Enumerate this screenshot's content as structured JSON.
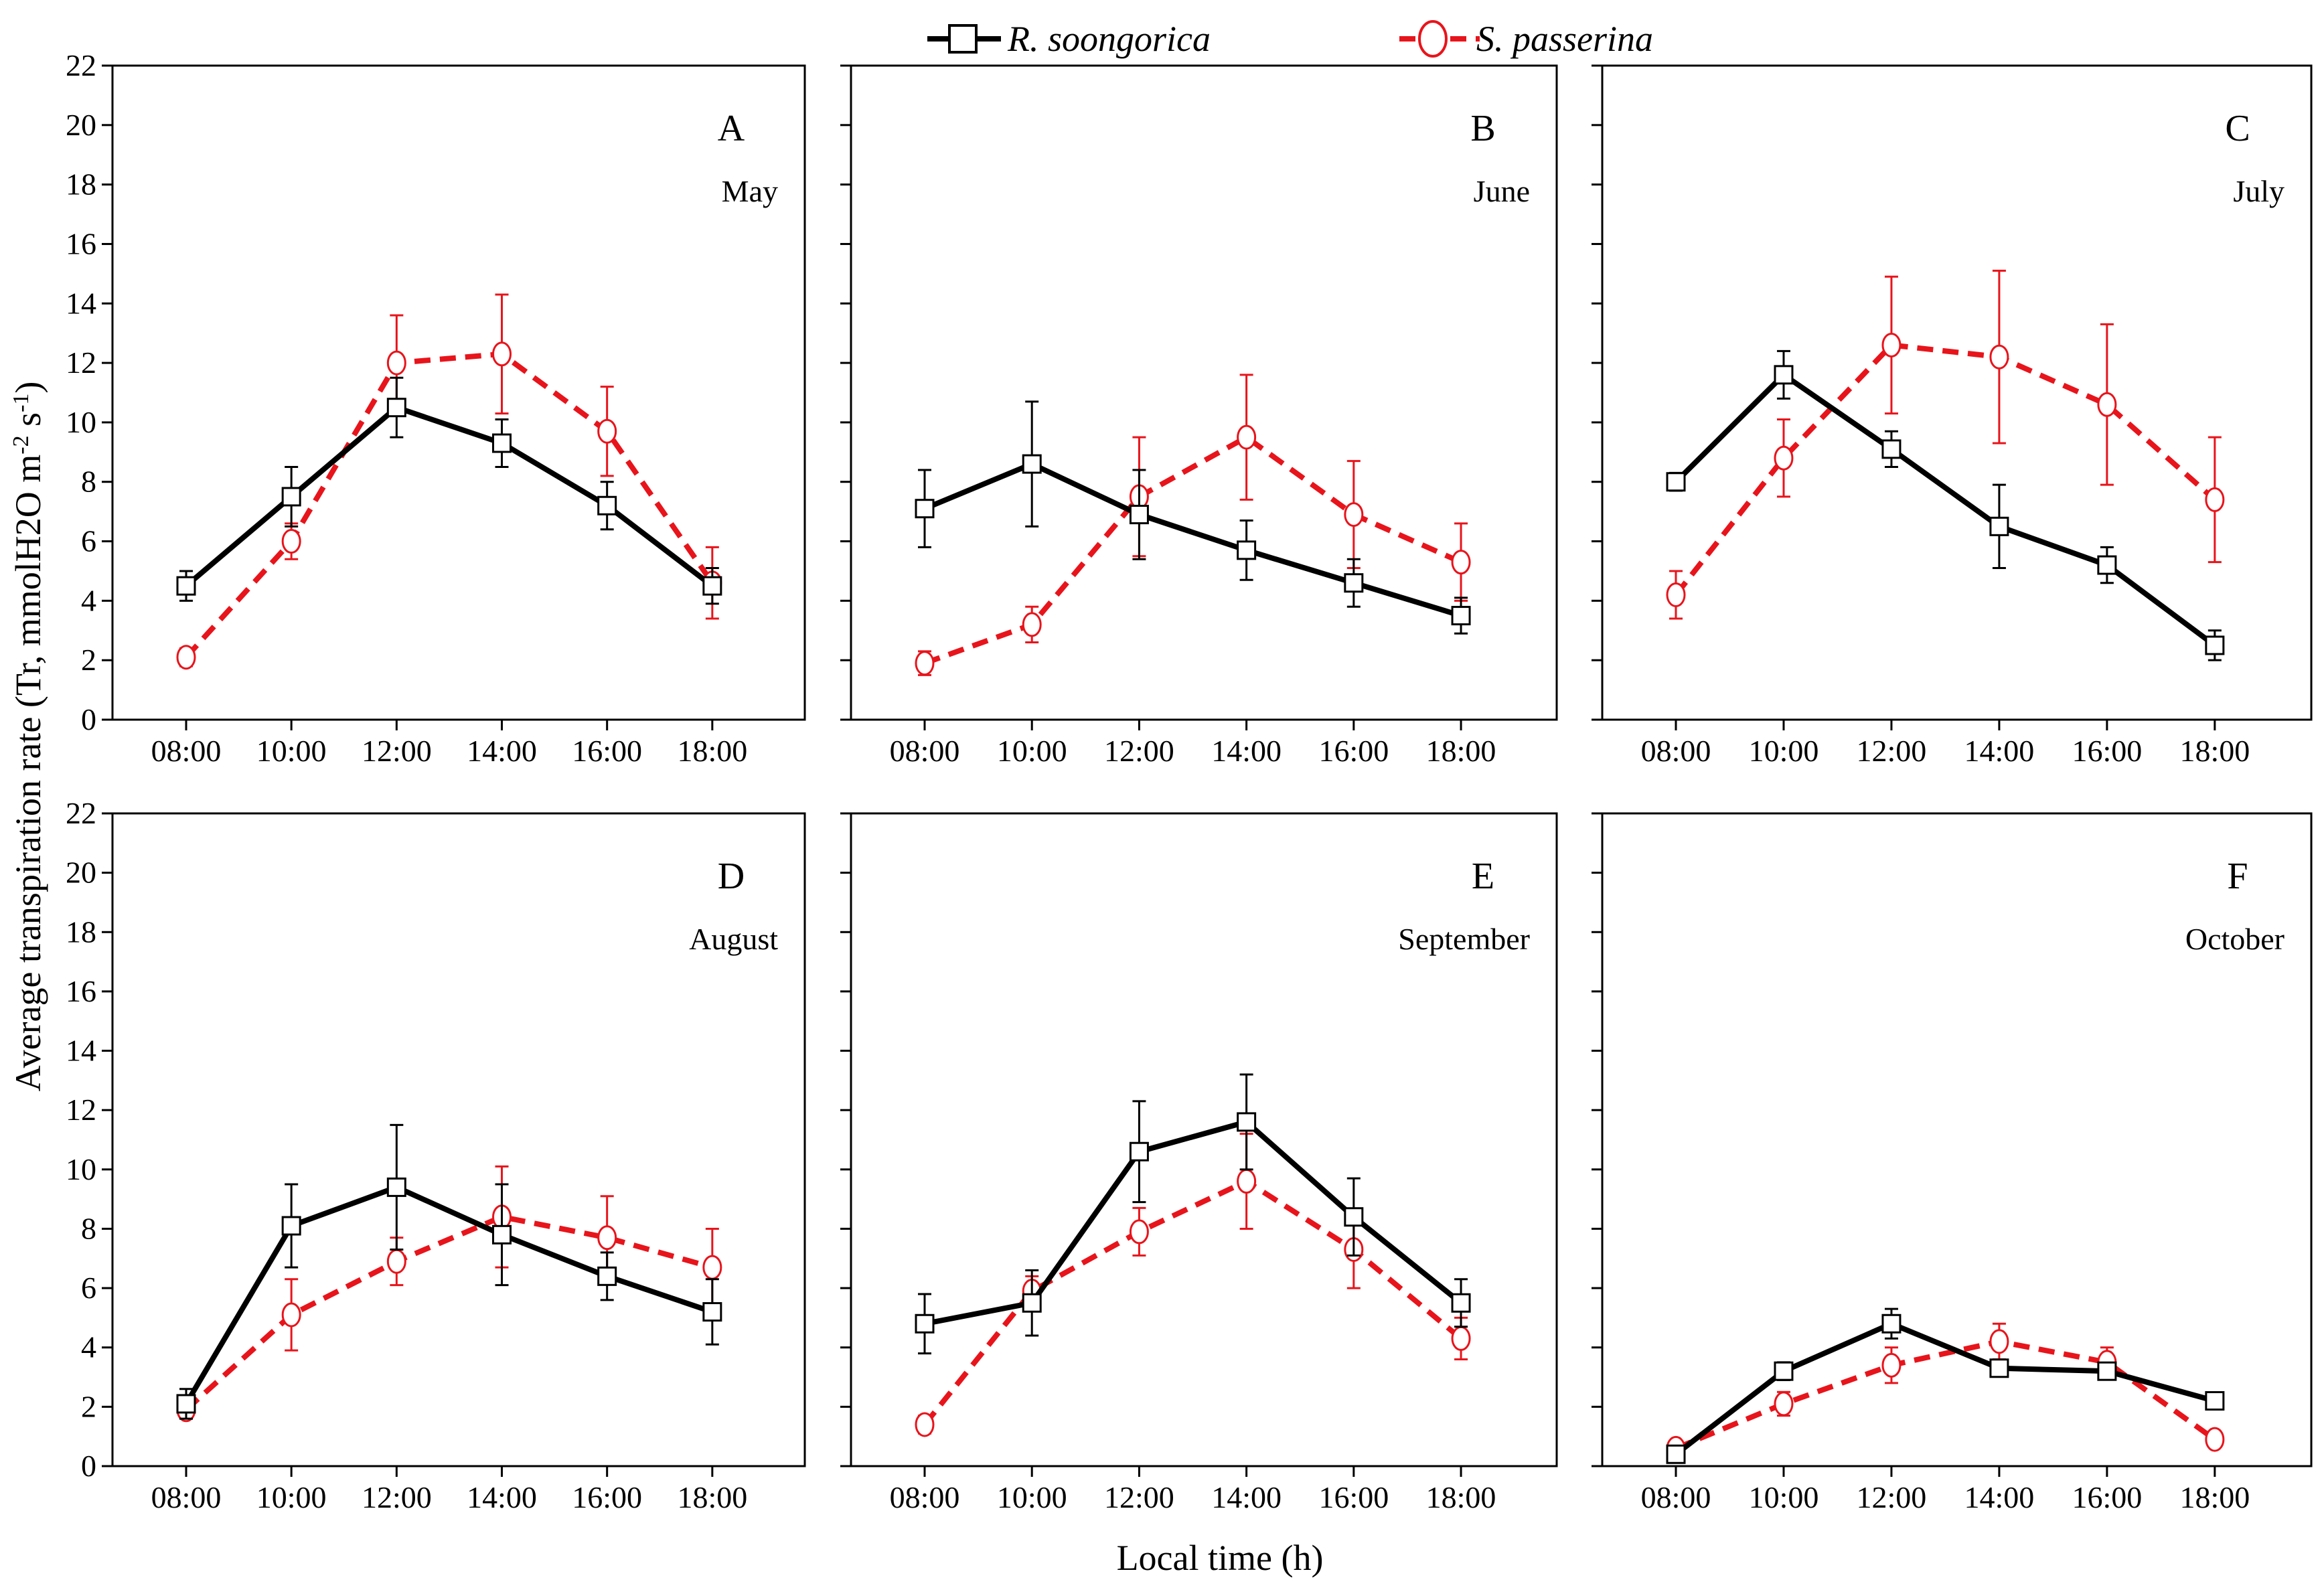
{
  "chart_data": {
    "type": "line",
    "layout": "2x3 grid",
    "ylabel": "Average transpiration rate (Tr, mmolH2O m",
    "ylabel_sup1": "-2",
    "ylabel_mid": " s",
    "ylabel_sup2": "-1",
    "ylabel_end": ")",
    "xlabel": "Local time (h)",
    "categories": [
      "08:00",
      "10:00",
      "12:00",
      "14:00",
      "16:00",
      "18:00"
    ],
    "y_ticks": [
      "0",
      "2",
      "4",
      "6",
      "8",
      "10",
      "12",
      "14",
      "16",
      "18",
      "20",
      "22"
    ],
    "ylim": [
      0,
      22
    ],
    "legend": [
      {
        "name": "R. soongorica",
        "color": "#000000",
        "marker": "square",
        "dash": "solid"
      },
      {
        "name": "S. passerina",
        "color": "#e8141b",
        "marker": "circle",
        "dash": "dashed"
      }
    ],
    "panels": [
      {
        "letter": "A",
        "month": "May",
        "series": [
          {
            "name": "R. soongorica",
            "values": [
              4.5,
              7.5,
              10.5,
              9.3,
              7.2,
              4.5
            ],
            "errors": [
              0.5,
              1.0,
              1.0,
              0.8,
              0.8,
              0.6
            ]
          },
          {
            "name": "S. passerina",
            "values": [
              2.1,
              6.0,
              12.0,
              12.3,
              9.7,
              4.6
            ],
            "errors": [
              0.3,
              0.6,
              1.6,
              2.0,
              1.5,
              1.2
            ]
          }
        ]
      },
      {
        "letter": "B",
        "month": "June",
        "series": [
          {
            "name": "R. soongorica",
            "values": [
              7.1,
              8.6,
              6.9,
              5.7,
              4.6,
              3.5
            ],
            "errors": [
              1.3,
              2.1,
              1.5,
              1.0,
              0.8,
              0.6
            ]
          },
          {
            "name": "S. passerina",
            "values": [
              1.9,
              3.2,
              7.5,
              9.5,
              6.9,
              5.3
            ],
            "errors": [
              0.4,
              0.6,
              2.0,
              2.1,
              1.8,
              1.3
            ]
          }
        ]
      },
      {
        "letter": "C",
        "month": "July",
        "series": [
          {
            "name": "R. soongorica",
            "values": [
              8.0,
              11.6,
              9.1,
              6.5,
              5.2,
              2.5
            ],
            "errors": [
              0.3,
              0.8,
              0.6,
              1.4,
              0.6,
              0.5
            ]
          },
          {
            "name": "S. passerina",
            "values": [
              4.2,
              8.8,
              12.6,
              12.2,
              10.6,
              7.4
            ],
            "errors": [
              0.8,
              1.3,
              2.3,
              2.9,
              2.7,
              2.1
            ]
          }
        ]
      },
      {
        "letter": "D",
        "month": "August",
        "series": [
          {
            "name": "R. soongorica",
            "values": [
              2.1,
              8.1,
              9.4,
              7.8,
              6.4,
              5.2
            ],
            "errors": [
              0.5,
              1.4,
              2.1,
              1.7,
              0.8,
              1.1
            ]
          },
          {
            "name": "S. passerina",
            "values": [
              1.9,
              5.1,
              6.9,
              8.4,
              7.7,
              6.7
            ],
            "errors": [
              0.3,
              1.2,
              0.8,
              1.7,
              1.4,
              1.3
            ]
          }
        ]
      },
      {
        "letter": "E",
        "month": "September",
        "series": [
          {
            "name": "R. soongorica",
            "values": [
              4.8,
              5.5,
              10.6,
              11.6,
              8.4,
              5.5
            ],
            "errors": [
              1.0,
              1.1,
              1.7,
              1.6,
              1.3,
              0.8
            ]
          },
          {
            "name": "S. passerina",
            "values": [
              1.4,
              5.9,
              7.9,
              9.6,
              7.3,
              4.3
            ],
            "errors": [
              0.3,
              0.5,
              0.8,
              1.6,
              1.3,
              0.7
            ]
          }
        ]
      },
      {
        "letter": "F",
        "month": "October",
        "series": [
          {
            "name": "R. soongorica",
            "values": [
              0.4,
              3.2,
              4.8,
              3.3,
              3.2,
              2.2
            ],
            "errors": [
              0.2,
              0.3,
              0.5,
              0.2,
              0.2,
              0.2
            ]
          },
          {
            "name": "S. passerina",
            "values": [
              0.6,
              2.1,
              3.4,
              4.2,
              3.5,
              0.9
            ],
            "errors": [
              0.2,
              0.4,
              0.6,
              0.6,
              0.5,
              0.2
            ]
          }
        ]
      }
    ]
  }
}
